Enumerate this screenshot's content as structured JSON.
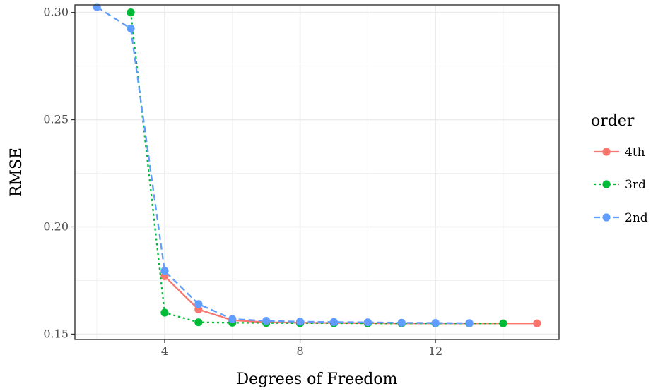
{
  "chart_data": {
    "type": "line",
    "xlabel": "Degrees of Freedom",
    "ylabel": "RMSE",
    "xlim": [
      1.35,
      15.65
    ],
    "ylim": [
      0.1475,
      0.3035
    ],
    "x_ticks": [
      4,
      8,
      12
    ],
    "x_tick_labels": [
      "4",
      "8",
      "12"
    ],
    "y_ticks": [
      0.15,
      0.2,
      0.25,
      0.3
    ],
    "y_tick_labels": [
      "0.15",
      "0.20",
      "0.25",
      "0.30"
    ],
    "grid": true,
    "legend": {
      "title": "order",
      "placement": "right"
    },
    "series": [
      {
        "name": "4th",
        "color": "#F8766D",
        "dash": "solid",
        "points": [
          [
            4,
            0.177
          ],
          [
            5,
            0.1615
          ],
          [
            6,
            0.1565
          ],
          [
            7,
            0.1555
          ],
          [
            8,
            0.1553
          ],
          [
            9,
            0.1552
          ],
          [
            10,
            0.1551
          ],
          [
            11,
            0.155
          ],
          [
            12,
            0.155
          ],
          [
            13,
            0.155
          ],
          [
            14,
            0.155
          ],
          [
            15,
            0.155
          ]
        ]
      },
      {
        "name": "3rd",
        "color": "#00BA38",
        "dash": "dotted",
        "points": [
          [
            3,
            0.3
          ],
          [
            4,
            0.16
          ],
          [
            5,
            0.1555
          ],
          [
            6,
            0.1553
          ],
          [
            7,
            0.1552
          ],
          [
            8,
            0.1551
          ],
          [
            9,
            0.1551
          ],
          [
            10,
            0.155
          ],
          [
            11,
            0.155
          ],
          [
            12,
            0.155
          ],
          [
            13,
            0.155
          ],
          [
            14,
            0.155
          ]
        ]
      },
      {
        "name": "2nd",
        "color": "#619CFF",
        "dash": "dashed",
        "points": [
          [
            2,
            0.3025
          ],
          [
            3,
            0.2925
          ],
          [
            4,
            0.1795
          ],
          [
            5,
            0.164
          ],
          [
            6,
            0.157
          ],
          [
            7,
            0.1562
          ],
          [
            8,
            0.1558
          ],
          [
            9,
            0.1556
          ],
          [
            10,
            0.1555
          ],
          [
            11,
            0.1553
          ],
          [
            12,
            0.1552
          ],
          [
            13,
            0.1551
          ]
        ]
      }
    ]
  }
}
